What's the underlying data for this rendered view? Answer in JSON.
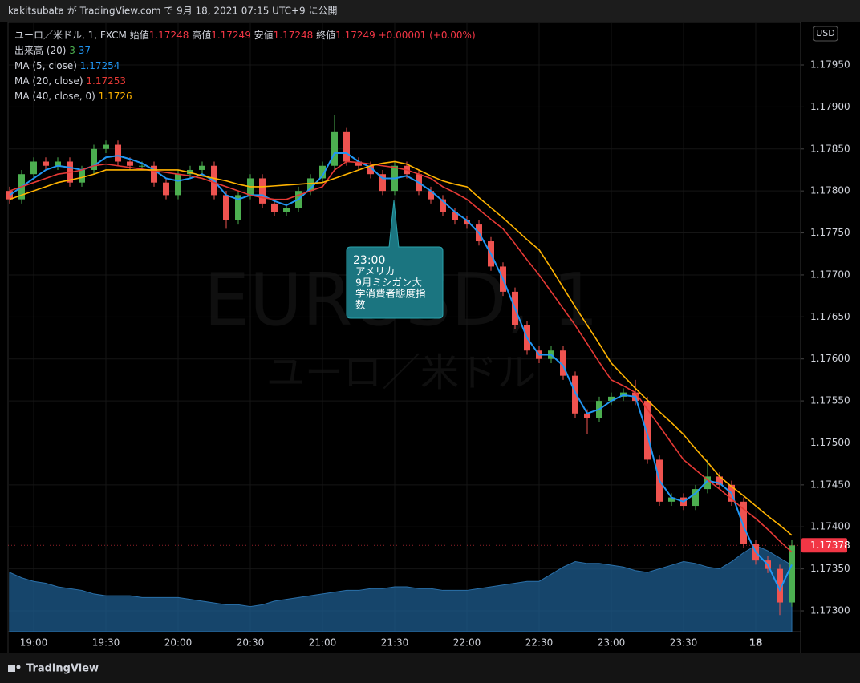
{
  "header": {
    "text": "kakitsubata が TradingView.com で 9月 18, 2021 07:15 UTC+9 に公開"
  },
  "footer": {
    "brand": "TradingView"
  },
  "chart_data": {
    "type": "candlestick",
    "symbol": "ユーロ／米ドル, 1, FXCM",
    "ohlc_legend": [
      {
        "label": "始値",
        "value": 1.17248
      },
      {
        "label": "高値",
        "value": 1.17249
      },
      {
        "label": "安値",
        "value": 1.17248
      },
      {
        "label": "終値",
        "value": 1.17249
      }
    ],
    "change": "+0.00001 (+0.00%)",
    "currency": "USD",
    "watermark": [
      "EURUSD, 1",
      "ユーロ／米ドル"
    ],
    "categories": [
      null,
      null,
      "19:00",
      null,
      null,
      null,
      null,
      null,
      "19:30",
      null,
      null,
      null,
      null,
      null,
      "20:00",
      null,
      null,
      null,
      null,
      null,
      "20:30",
      null,
      null,
      null,
      null,
      null,
      "21:00",
      null,
      null,
      null,
      null,
      null,
      "21:30",
      null,
      null,
      null,
      null,
      null,
      "22:00",
      null,
      null,
      null,
      null,
      null,
      "22:30",
      null,
      null,
      null,
      null,
      null,
      "23:00",
      null,
      null,
      null,
      null,
      null,
      "23:30",
      null,
      null,
      null,
      null,
      null,
      "18",
      null,
      null,
      null
    ],
    "open": [
      1.178,
      1.1779,
      1.1782,
      1.17835,
      1.1783,
      1.17835,
      1.1781,
      1.17825,
      1.1785,
      1.17855,
      1.17835,
      1.1783,
      1.1783,
      1.1781,
      1.17795,
      1.1782,
      1.17825,
      1.1783,
      1.17795,
      1.17765,
      1.17795,
      1.17815,
      1.17785,
      1.17775,
      1.1778,
      1.178,
      1.17815,
      1.1783,
      1.1787,
      1.17835,
      1.1783,
      1.1782,
      1.178,
      1.1783,
      1.1782,
      1.178,
      1.1779,
      1.17775,
      1.17765,
      1.1776,
      1.1774,
      1.1771,
      1.1768,
      1.1764,
      1.1761,
      1.176,
      1.1761,
      1.1758,
      1.17535,
      1.1753,
      1.1755,
      1.17555,
      1.1756,
      1.1755,
      1.1748,
      1.1743,
      1.17435,
      1.17425,
      1.17445,
      1.1746,
      1.1745,
      1.1743,
      1.1738,
      1.1736,
      1.1735,
      1.1731
    ],
    "high": [
      1.17805,
      1.17825,
      1.1784,
      1.1784,
      1.1784,
      1.1784,
      1.1783,
      1.17855,
      1.1786,
      1.1786,
      1.1784,
      1.17835,
      1.17835,
      1.17815,
      1.17825,
      1.1783,
      1.17835,
      1.17835,
      1.178,
      1.178,
      1.1782,
      1.1782,
      1.1779,
      1.17785,
      1.17805,
      1.1782,
      1.17835,
      1.1789,
      1.17875,
      1.1784,
      1.17835,
      1.17825,
      1.17835,
      1.17835,
      1.17825,
      1.17805,
      1.17795,
      1.1778,
      1.1777,
      1.17765,
      1.17745,
      1.17715,
      1.17685,
      1.17645,
      1.17615,
      1.17615,
      1.17615,
      1.17585,
      1.1754,
      1.17555,
      1.1756,
      1.17565,
      1.17575,
      1.17555,
      1.17485,
      1.1744,
      1.1744,
      1.1745,
      1.1748,
      1.17465,
      1.17455,
      1.17435,
      1.17385,
      1.17365,
      1.17355,
      1.17385
    ],
    "low": [
      1.17785,
      1.17785,
      1.17815,
      1.17825,
      1.17825,
      1.17805,
      1.17805,
      1.1782,
      1.17845,
      1.1783,
      1.17825,
      1.17825,
      1.17805,
      1.1779,
      1.1779,
      1.17815,
      1.1782,
      1.1779,
      1.17755,
      1.1776,
      1.1779,
      1.1778,
      1.1777,
      1.1777,
      1.17775,
      1.17795,
      1.1781,
      1.17825,
      1.1783,
      1.17825,
      1.17815,
      1.17795,
      1.17795,
      1.17815,
      1.17795,
      1.17785,
      1.1777,
      1.1776,
      1.17755,
      1.17735,
      1.17705,
      1.17675,
      1.17635,
      1.17605,
      1.17595,
      1.17595,
      1.17575,
      1.1753,
      1.1751,
      1.17525,
      1.17545,
      1.1755,
      1.17545,
      1.17475,
      1.17425,
      1.17425,
      1.1742,
      1.1742,
      1.1744,
      1.17445,
      1.17425,
      1.17375,
      1.17355,
      1.17345,
      1.17295,
      1.17305
    ],
    "close": [
      1.1779,
      1.1782,
      1.17835,
      1.1783,
      1.17835,
      1.1781,
      1.17825,
      1.1785,
      1.17855,
      1.17835,
      1.1783,
      1.1783,
      1.1781,
      1.17795,
      1.1782,
      1.17825,
      1.1783,
      1.17795,
      1.17765,
      1.17795,
      1.17815,
      1.17785,
      1.17775,
      1.1778,
      1.178,
      1.17815,
      1.1783,
      1.1787,
      1.17835,
      1.1783,
      1.1782,
      1.178,
      1.1783,
      1.1782,
      1.178,
      1.1779,
      1.17775,
      1.17765,
      1.1776,
      1.1774,
      1.1771,
      1.1768,
      1.1764,
      1.1761,
      1.176,
      1.1761,
      1.1758,
      1.17535,
      1.1753,
      1.1755,
      1.17555,
      1.1756,
      1.1755,
      1.1748,
      1.1743,
      1.17435,
      1.17425,
      1.17445,
      1.1746,
      1.1745,
      1.1743,
      1.1738,
      1.1736,
      1.1735,
      1.1731,
      1.17378
    ],
    "up_color": "#4caf50",
    "down_color": "#ef5350",
    "last_color": "#f23645",
    "series": [
      {
        "name": "MA (5, close)",
        "legend_value": 1.17254,
        "color": "#2196f3",
        "values": [
          1.17795,
          1.17805,
          1.17815,
          1.17825,
          1.1783,
          1.17828,
          1.17825,
          1.1783,
          1.1784,
          1.17842,
          1.17838,
          1.17833,
          1.17825,
          1.17815,
          1.17812,
          1.17815,
          1.1782,
          1.17812,
          1.17795,
          1.1779,
          1.17795,
          1.17795,
          1.17788,
          1.17783,
          1.1779,
          1.17803,
          1.17818,
          1.17845,
          1.17845,
          1.17835,
          1.17828,
          1.17815,
          1.17815,
          1.17818,
          1.1781,
          1.178,
          1.17788,
          1.17775,
          1.17765,
          1.1775,
          1.17725,
          1.17695,
          1.1766,
          1.17625,
          1.17605,
          1.17605,
          1.17592,
          1.1756,
          1.17535,
          1.1754,
          1.1755,
          1.17557,
          1.17555,
          1.1751,
          1.17455,
          1.17435,
          1.1743,
          1.1744,
          1.17455,
          1.17452,
          1.1744,
          1.174,
          1.1737,
          1.17355,
          1.17325,
          1.17355
        ]
      },
      {
        "name": "MA (20, close)",
        "legend_value": 1.17253,
        "color": "#e53935",
        "values": [
          1.178,
          1.17805,
          1.1781,
          1.17815,
          1.1782,
          1.17822,
          1.17825,
          1.1783,
          1.17832,
          1.1783,
          1.17828,
          1.17826,
          1.17824,
          1.17822,
          1.1782,
          1.17818,
          1.17815,
          1.1781,
          1.17805,
          1.178,
          1.17795,
          1.17792,
          1.1779,
          1.1779,
          1.17795,
          1.178,
          1.17805,
          1.17825,
          1.17835,
          1.17834,
          1.17832,
          1.1783,
          1.17828,
          1.17825,
          1.1782,
          1.17815,
          1.17805,
          1.17798,
          1.1779,
          1.17778,
          1.17766,
          1.17755,
          1.17737,
          1.17718,
          1.177,
          1.1768,
          1.1766,
          1.1764,
          1.17618,
          1.17596,
          1.17575,
          1.17568,
          1.1756,
          1.1754,
          1.1752,
          1.175,
          1.1748,
          1.17468,
          1.17456,
          1.17445,
          1.17433,
          1.17421,
          1.1741,
          1.17397,
          1.17383,
          1.1737
        ]
      },
      {
        "name": "MA (40, close, 0)",
        "legend_value": 1.1726,
        "color": "#ffb300",
        "values": [
          1.1779,
          1.17795,
          1.178,
          1.17805,
          1.1781,
          1.17813,
          1.17816,
          1.1782,
          1.17825,
          1.17825,
          1.17825,
          1.17825,
          1.17825,
          1.17825,
          1.17825,
          1.17822,
          1.17818,
          1.17815,
          1.17812,
          1.17808,
          1.17805,
          1.17805,
          1.17806,
          1.17807,
          1.17808,
          1.17809,
          1.1781,
          1.17815,
          1.1782,
          1.17825,
          1.1783,
          1.17833,
          1.17835,
          1.17832,
          1.17825,
          1.17818,
          1.17812,
          1.17808,
          1.17805,
          1.17792,
          1.1778,
          1.17768,
          1.17755,
          1.17742,
          1.1773,
          1.17708,
          1.17685,
          1.17662,
          1.1764,
          1.17618,
          1.17595,
          1.1758,
          1.17565,
          1.17551,
          1.17537,
          1.17524,
          1.1751,
          1.17493,
          1.17477,
          1.1746,
          1.17448,
          1.17437,
          1.17425,
          1.17413,
          1.17402,
          1.1739
        ]
      }
    ],
    "volume": {
      "name": "出来高 (20)",
      "legend_values": [
        3,
        37
      ],
      "legend_colors": [
        "#4caf50",
        "#2196f3"
      ],
      "color": "#1d5c8f",
      "axis": "y2",
      "values": [
        33,
        30,
        28,
        27,
        25,
        24,
        23,
        21,
        20,
        20,
        20,
        19,
        19,
        19,
        19,
        18,
        17,
        16,
        15,
        15,
        14,
        15,
        17,
        18,
        19,
        20,
        21,
        22,
        23,
        23,
        24,
        24,
        25,
        25,
        24,
        24,
        23,
        23,
        23,
        24,
        25,
        26,
        27,
        28,
        28,
        32,
        36,
        39,
        38,
        38,
        37,
        36,
        34,
        33,
        35,
        37,
        39,
        38,
        36,
        35,
        39,
        44,
        48,
        45,
        41,
        37
      ]
    },
    "y2lim": [
      0,
      339
    ],
    "ylim": [
      1.172752,
      1.180006
    ],
    "yticks": [
      {
        "value": 1.173,
        "label": "1.17300"
      },
      {
        "value": 1.1735,
        "label": "1.17350"
      },
      {
        "value": 1.174,
        "label": "1.17400"
      },
      {
        "value": 1.1745,
        "label": "1.17450"
      },
      {
        "value": 1.175,
        "label": "1.17500"
      },
      {
        "value": 1.1755,
        "label": "1.17550"
      },
      {
        "value": 1.176,
        "label": "1.17600"
      },
      {
        "value": 1.1765,
        "label": "1.17650"
      },
      {
        "value": 1.177,
        "label": "1.17700"
      },
      {
        "value": 1.1775,
        "label": "1.17750"
      },
      {
        "value": 1.178,
        "label": "1.17800"
      },
      {
        "value": 1.1785,
        "label": "1.17850"
      },
      {
        "value": 1.179,
        "label": "1.17900"
      },
      {
        "value": 1.1795,
        "label": "1.17950"
      }
    ],
    "grid": true,
    "annotation": {
      "lines": [
        "23:00",
        "アメリカ",
        "9月ミシガン大",
        "学消費者態度指",
        "数"
      ],
      "color": "#1b7580"
    }
  }
}
